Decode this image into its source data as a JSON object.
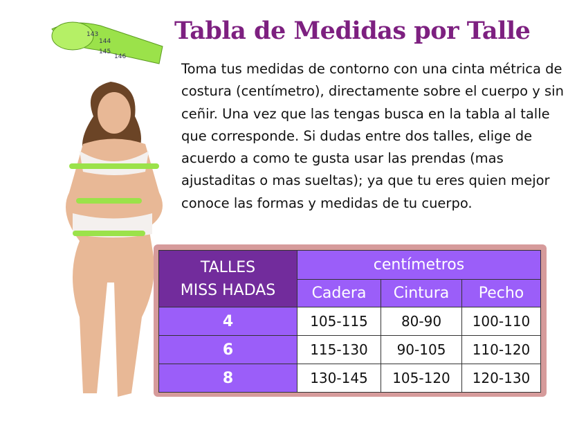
{
  "title": "Tabla de Medidas por Talle",
  "description": "Toma tus medidas de contorno con una cinta métrica de costura (centímetro), directamente sobre el cuerpo  y sin ceñir. Una vez que las tengas busca en la tabla al talle que corresponde. Si dudas entre dos talles, elige de acuerdo a como te gusta usar las prendas (mas ajustaditas o mas sueltas); ya que tu eres quien mejor conoce las formas y medidas de tu cuerpo.",
  "tape_numbers": [
    "143",
    "144",
    "145",
    "146"
  ],
  "colors": {
    "title": "#7d2080",
    "header_dark": "#722c9c",
    "header": "#9b5ef9",
    "frame": "#d69b9b",
    "tape": "#9be24a"
  },
  "table": {
    "talles_header": [
      "TALLES",
      "MISS HADAS"
    ],
    "unit_header": "centímetros",
    "columns": [
      "Cadera",
      "Cintura",
      "Pecho"
    ],
    "rows": [
      {
        "talle": "4",
        "values": [
          "105-115",
          "80-90",
          "100-110"
        ]
      },
      {
        "talle": "6",
        "values": [
          "115-130",
          "90-105",
          "110-120"
        ]
      },
      {
        "talle": "8",
        "values": [
          "130-145",
          "105-120",
          "120-130"
        ]
      }
    ]
  }
}
